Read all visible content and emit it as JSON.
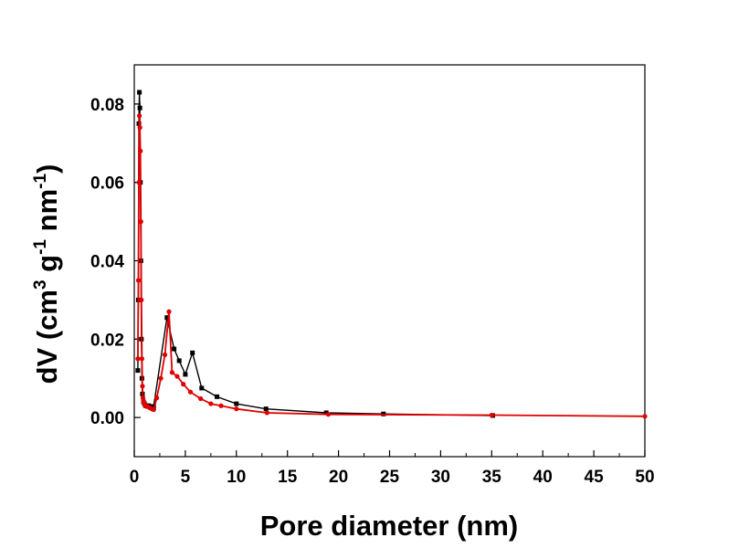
{
  "chart_data": {
    "type": "line",
    "xlabel": "Pore diameter (nm)",
    "ylabel": {
      "prefix": "dV (cm",
      "sup1": "3",
      "mid1": " g",
      "sup2": "-1",
      "mid2": " nm",
      "sup3": "-1",
      "suffix": ")"
    },
    "xlim": [
      0,
      50
    ],
    "ylim": [
      -0.01,
      0.09
    ],
    "xticks": [
      0,
      5,
      10,
      15,
      20,
      25,
      30,
      35,
      40,
      45,
      50
    ],
    "yticks": [
      0.0,
      0.02,
      0.04,
      0.06,
      0.08
    ],
    "ytick_labels": [
      "0.00",
      "0.02",
      "0.04",
      "0.06",
      "0.08"
    ],
    "grid": false,
    "legend": "none",
    "series": [
      {
        "color": "#000000",
        "marker": "square",
        "x": [
          0.35,
          0.4,
          0.45,
          0.5,
          0.55,
          0.6,
          0.65,
          0.7,
          0.75,
          0.8,
          0.9,
          1.0,
          1.1,
          1.2,
          1.4,
          1.6,
          1.9,
          3.2,
          3.9,
          4.4,
          5.0,
          5.7,
          6.6,
          8.1,
          10.0,
          12.9,
          18.8,
          24.4,
          35.1
        ],
        "y": [
          0.012,
          0.03,
          0.075,
          0.083,
          0.079,
          0.06,
          0.04,
          0.02,
          0.01,
          0.006,
          0.004,
          0.0035,
          0.003,
          0.003,
          0.003,
          0.0028,
          0.0028,
          0.0255,
          0.0175,
          0.0145,
          0.011,
          0.0165,
          0.0075,
          0.0053,
          0.0035,
          0.0022,
          0.0012,
          0.0009,
          0.0005
        ]
      },
      {
        "color": "#e00000",
        "marker": "circle",
        "x": [
          0.35,
          0.4,
          0.45,
          0.5,
          0.55,
          0.6,
          0.65,
          0.7,
          0.75,
          0.8,
          0.85,
          0.9,
          1.0,
          1.1,
          1.2,
          1.3,
          1.5,
          1.7,
          1.9,
          2.2,
          2.6,
          3.0,
          3.4,
          3.7,
          4.2,
          4.8,
          5.5,
          6.5,
          7.5,
          8.5,
          10.0,
          13.0,
          19.0,
          35.0,
          50.0
        ],
        "y": [
          0.015,
          0.035,
          0.06,
          0.077,
          0.074,
          0.068,
          0.05,
          0.03,
          0.015,
          0.008,
          0.005,
          0.004,
          0.0035,
          0.003,
          0.0028,
          0.0028,
          0.0025,
          0.0022,
          0.002,
          0.005,
          0.01,
          0.016,
          0.027,
          0.0115,
          0.0105,
          0.0085,
          0.0065,
          0.0048,
          0.0035,
          0.003,
          0.0022,
          0.0012,
          0.0008,
          0.0006,
          0.0003
        ]
      }
    ]
  }
}
